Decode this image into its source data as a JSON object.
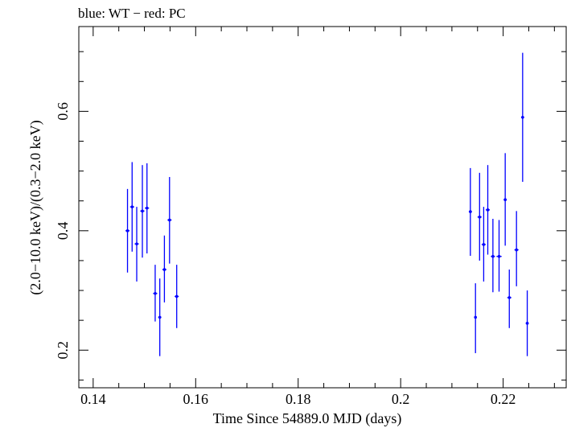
{
  "chart_data": {
    "type": "scatter",
    "title": "blue: WT − red: PC",
    "xlabel": "Time Since 54889.0 MJD (days)",
    "ylabel": "(2.0−10.0 keV)/(0.3−2.0 keV)",
    "xlim": [
      0.1372,
      0.2323
    ],
    "ylim": [
      0.137,
      0.742
    ],
    "x_ticks": [
      0.14,
      0.16,
      0.18,
      0.2,
      0.22
    ],
    "x_tick_labels": [
      "0.14",
      "0.16",
      "0.18",
      "0.2",
      "0.22"
    ],
    "y_ticks": [
      0.2,
      0.4,
      0.6
    ],
    "y_tick_labels": [
      "0.2",
      "0.4",
      "0.6"
    ],
    "grid": false,
    "series": [
      {
        "color": "#0000ff",
        "points": [
          {
            "x": 0.1467,
            "y": 0.4,
            "xerr": 0.0004,
            "ylo": 0.33,
            "yhi": 0.47
          },
          {
            "x": 0.1476,
            "y": 0.44,
            "xerr": 0.0004,
            "ylo": 0.365,
            "yhi": 0.515
          },
          {
            "x": 0.1485,
            "y": 0.378,
            "xerr": 0.0004,
            "ylo": 0.315,
            "yhi": 0.44
          },
          {
            "x": 0.1496,
            "y": 0.433,
            "xerr": 0.0004,
            "ylo": 0.355,
            "yhi": 0.51
          },
          {
            "x": 0.1505,
            "y": 0.438,
            "xerr": 0.0004,
            "ylo": 0.362,
            "yhi": 0.513
          },
          {
            "x": 0.1521,
            "y": 0.295,
            "xerr": 0.0004,
            "ylo": 0.248,
            "yhi": 0.343
          },
          {
            "x": 0.153,
            "y": 0.255,
            "xerr": 0.0003,
            "ylo": 0.19,
            "yhi": 0.32
          },
          {
            "x": 0.1539,
            "y": 0.335,
            "xerr": 0.0004,
            "ylo": 0.28,
            "yhi": 0.392
          },
          {
            "x": 0.1549,
            "y": 0.418,
            "xerr": 0.0004,
            "ylo": 0.345,
            "yhi": 0.49
          },
          {
            "x": 0.1563,
            "y": 0.29,
            "xerr": 0.0004,
            "ylo": 0.237,
            "yhi": 0.343
          },
          {
            "x": 0.2136,
            "y": 0.432,
            "xerr": 0.0003,
            "ylo": 0.358,
            "yhi": 0.505
          },
          {
            "x": 0.2146,
            "y": 0.255,
            "xerr": 0.0002,
            "ylo": 0.195,
            "yhi": 0.312
          },
          {
            "x": 0.2154,
            "y": 0.423,
            "xerr": 0.0004,
            "ylo": 0.35,
            "yhi": 0.497
          },
          {
            "x": 0.2162,
            "y": 0.377,
            "xerr": 0.0004,
            "ylo": 0.315,
            "yhi": 0.44
          },
          {
            "x": 0.217,
            "y": 0.435,
            "xerr": 0.0004,
            "ylo": 0.36,
            "yhi": 0.51
          },
          {
            "x": 0.218,
            "y": 0.357,
            "xerr": 0.0004,
            "ylo": 0.297,
            "yhi": 0.42
          },
          {
            "x": 0.2192,
            "y": 0.357,
            "xerr": 0.0005,
            "ylo": 0.298,
            "yhi": 0.418
          },
          {
            "x": 0.2204,
            "y": 0.452,
            "xerr": 0.0003,
            "ylo": 0.375,
            "yhi": 0.53
          },
          {
            "x": 0.2212,
            "y": 0.288,
            "xerr": 0.0004,
            "ylo": 0.237,
            "yhi": 0.335
          },
          {
            "x": 0.2226,
            "y": 0.368,
            "xerr": 0.0004,
            "ylo": 0.307,
            "yhi": 0.433
          },
          {
            "x": 0.2238,
            "y": 0.59,
            "xerr": 0.0003,
            "ylo": 0.482,
            "yhi": 0.698
          },
          {
            "x": 0.2247,
            "y": 0.245,
            "xerr": 0.0003,
            "ylo": 0.19,
            "yhi": 0.3
          }
        ]
      }
    ]
  }
}
